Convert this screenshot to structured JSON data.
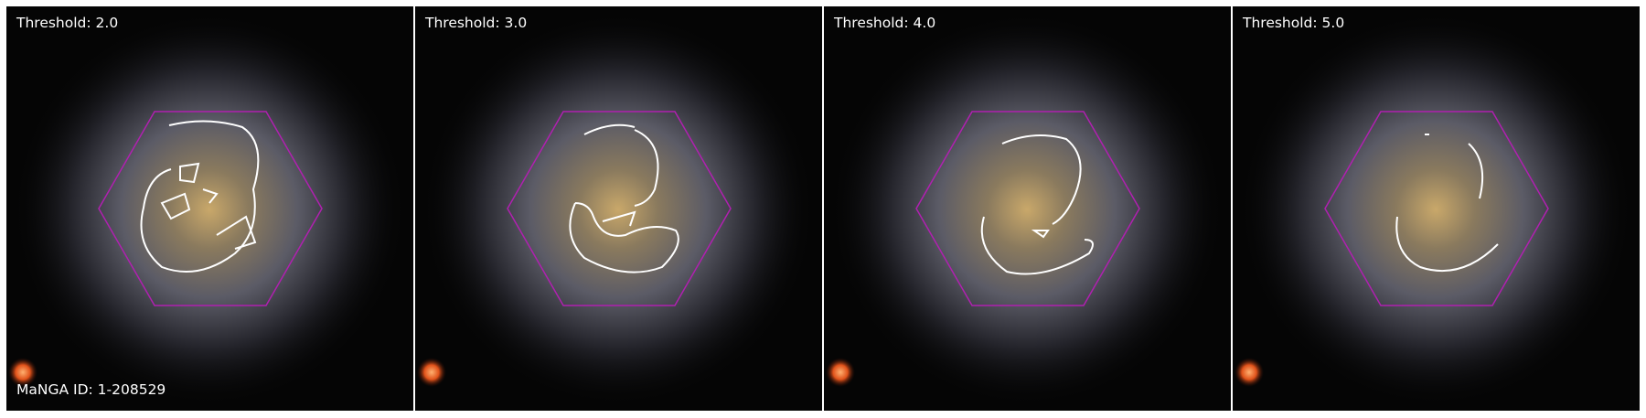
{
  "figure": {
    "manga_id": "MaNGA ID: 1-208529",
    "hexagon_color": "#b020b0",
    "contour_color": "#ffffff",
    "panels": [
      {
        "label": "Threshold: 2.0"
      },
      {
        "label": "Threshold: 3.0"
      },
      {
        "label": "Threshold: 4.0"
      },
      {
        "label": "Threshold: 5.0"
      }
    ]
  }
}
